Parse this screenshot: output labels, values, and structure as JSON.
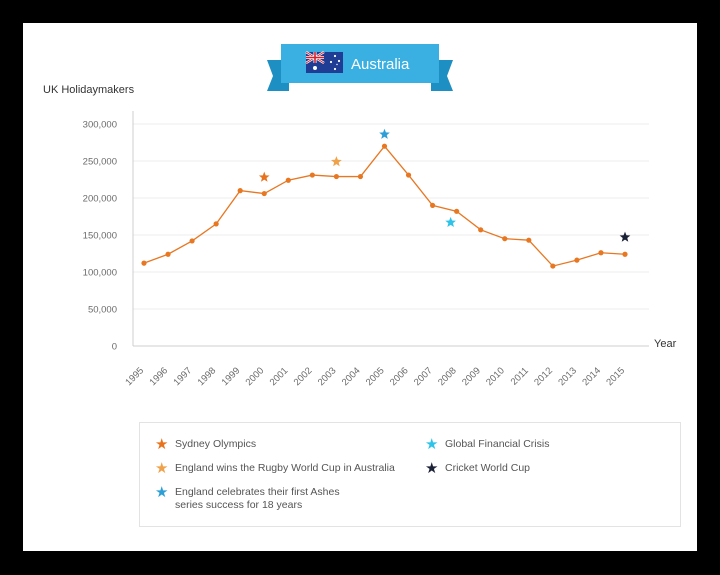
{
  "chart_data": {
    "type": "line",
    "title": "Australia",
    "ylabel": "UK Holidaymakers",
    "xlabel": "Year",
    "ylim": [
      0,
      300000
    ],
    "yticks": [
      "0",
      "50,000",
      "100,000",
      "150,000",
      "200,000",
      "250,000",
      "300,000"
    ],
    "ytick_values": [
      0,
      50000,
      100000,
      150000,
      200000,
      250000,
      300000
    ],
    "categories": [
      "1995",
      "1996",
      "1997",
      "1998",
      "1999",
      "2000",
      "2001",
      "2002",
      "2003",
      "2004",
      "2005",
      "2006",
      "2007",
      "2008",
      "2009",
      "2010",
      "2011",
      "2012",
      "2013",
      "2014",
      "2015"
    ],
    "values": [
      112000,
      124000,
      142000,
      165000,
      210000,
      206000,
      224000,
      231000,
      229000,
      229000,
      270000,
      231000,
      190000,
      182000,
      157000,
      145000,
      143000,
      108000,
      116000,
      126000,
      124000
    ],
    "line_color": "#e87722",
    "grid": true,
    "events": [
      {
        "label": "Sydney Olympics",
        "x": "2000",
        "y": 228000,
        "color": "#e8731d"
      },
      {
        "label": "England wins the Rugby World Cup in Australia",
        "x": "2003",
        "y": 249000,
        "color": "#f0a24a"
      },
      {
        "label": "England celebrates their first Ashes series success for 18 years",
        "x": "2005",
        "y": 286000,
        "color": "#2e9fd6"
      },
      {
        "label": "Global Financial Crisis",
        "x": "2007.75",
        "y": 167000,
        "color": "#2ec3e8"
      },
      {
        "label": "Cricket World Cup",
        "x": "2015",
        "y": 147000,
        "color": "#1c2236"
      }
    ]
  },
  "legend": {
    "items": [
      {
        "lines": [
          "Sydney Olympics"
        ],
        "color": "#e8731d",
        "icon": "star-icon"
      },
      {
        "lines": [
          "England wins the Rugby World Cup in Australia"
        ],
        "color": "#f0a24a",
        "icon": "star-icon"
      },
      {
        "lines": [
          "England celebrates their first Ashes",
          "series success for 18 years"
        ],
        "color": "#2e9fd6",
        "icon": "star-icon"
      },
      {
        "lines": [
          "Global Financial Crisis"
        ],
        "color": "#2ec3e8",
        "icon": "star-icon"
      },
      {
        "lines": [
          "Cricket World Cup"
        ],
        "color": "#1c2236",
        "icon": "star-icon"
      }
    ]
  },
  "banner": {
    "color": "#3ab0e2",
    "ribbon_color": "#1e8fc2",
    "flag": "australia-flag-icon"
  }
}
